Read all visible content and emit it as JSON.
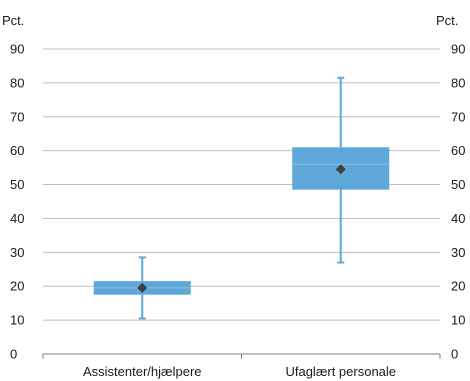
{
  "chart_data": {
    "type": "box",
    "y_unit_left": "Pct.",
    "y_unit_right": "Pct.",
    "ylim": [
      0,
      90
    ],
    "yticks": [
      0,
      10,
      20,
      30,
      40,
      50,
      60,
      70,
      80,
      90
    ],
    "grid": true,
    "categories": [
      "Assistenter/hjælpere",
      "Ufaglært personale"
    ],
    "boxes": [
      {
        "category": "Assistenter/hjælpere",
        "min": 10.5,
        "q1": 17.5,
        "median": 19.5,
        "q3": 21.5,
        "max": 28.5,
        "mean": 19.5
      },
      {
        "category": "Ufaglært personale",
        "min": 27,
        "q1": 48.5,
        "median": 56,
        "q3": 61,
        "max": 81.5,
        "mean": 54.5
      }
    ],
    "colors": {
      "box": "#6baed6",
      "box_fill": "#5da7d9",
      "whisker": "#5da7d9",
      "mean_marker": "#3f3f3f",
      "grid": "#bfbfbf",
      "axis": "#7f7f7f"
    }
  }
}
